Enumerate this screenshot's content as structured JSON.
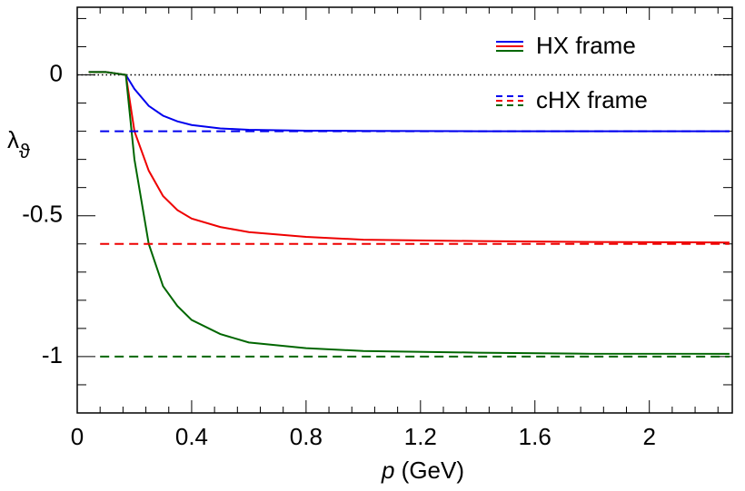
{
  "chart_data": {
    "type": "line",
    "xlabel_var": "p",
    "xlabel_unit": "(GeV)",
    "ylabel": "λ",
    "ylabel_sub": "ϑ",
    "xlim": [
      0,
      2.29
    ],
    "ylim": [
      -1.2,
      0.24
    ],
    "xticks": [
      0,
      0.4,
      0.8,
      1.2,
      1.6,
      2
    ],
    "yticks": [
      -1,
      -0.5,
      0
    ],
    "zero_line": true,
    "legend_position": "upper right",
    "legend": [
      {
        "label": "HX frame",
        "dash": "solid"
      },
      {
        "label": "cHX frame",
        "dash": "dashed"
      }
    ],
    "series": [
      {
        "color": "#0000ee",
        "dash": "solid",
        "x": [
          0.04,
          0.1,
          0.17,
          0.2,
          0.25,
          0.3,
          0.35,
          0.4,
          0.5,
          0.6,
          0.8,
          1.0,
          1.4,
          1.8,
          2.28
        ],
        "values": [
          0.01,
          0.01,
          0.0,
          -0.05,
          -0.11,
          -0.145,
          -0.165,
          -0.178,
          -0.19,
          -0.195,
          -0.198,
          -0.199,
          -0.2,
          -0.2,
          -0.2
        ]
      },
      {
        "color": "#ee0000",
        "dash": "solid",
        "x": [
          0.04,
          0.1,
          0.17,
          0.2,
          0.25,
          0.3,
          0.35,
          0.4,
          0.5,
          0.6,
          0.8,
          1.0,
          1.4,
          1.8,
          2.28
        ],
        "values": [
          0.01,
          0.01,
          0.0,
          -0.2,
          -0.34,
          -0.43,
          -0.48,
          -0.51,
          -0.54,
          -0.558,
          -0.575,
          -0.585,
          -0.59,
          -0.593,
          -0.595
        ]
      },
      {
        "color": "#006600",
        "dash": "solid",
        "x": [
          0.04,
          0.1,
          0.17,
          0.2,
          0.25,
          0.3,
          0.35,
          0.4,
          0.5,
          0.6,
          0.8,
          1.0,
          1.4,
          1.8,
          2.28
        ],
        "values": [
          0.01,
          0.01,
          0.0,
          -0.3,
          -0.6,
          -0.75,
          -0.82,
          -0.87,
          -0.92,
          -0.95,
          -0.97,
          -0.98,
          -0.986,
          -0.99,
          -0.99
        ]
      },
      {
        "color": "#0000ee",
        "dash": "dashed",
        "x": [
          0.08,
          2.28
        ],
        "values": [
          -0.2,
          -0.2
        ]
      },
      {
        "color": "#ee0000",
        "dash": "dashed",
        "x": [
          0.08,
          2.28
        ],
        "values": [
          -0.6,
          -0.6
        ]
      },
      {
        "color": "#006600",
        "dash": "dashed",
        "x": [
          0.08,
          2.28
        ],
        "values": [
          -1,
          -1
        ]
      }
    ]
  }
}
